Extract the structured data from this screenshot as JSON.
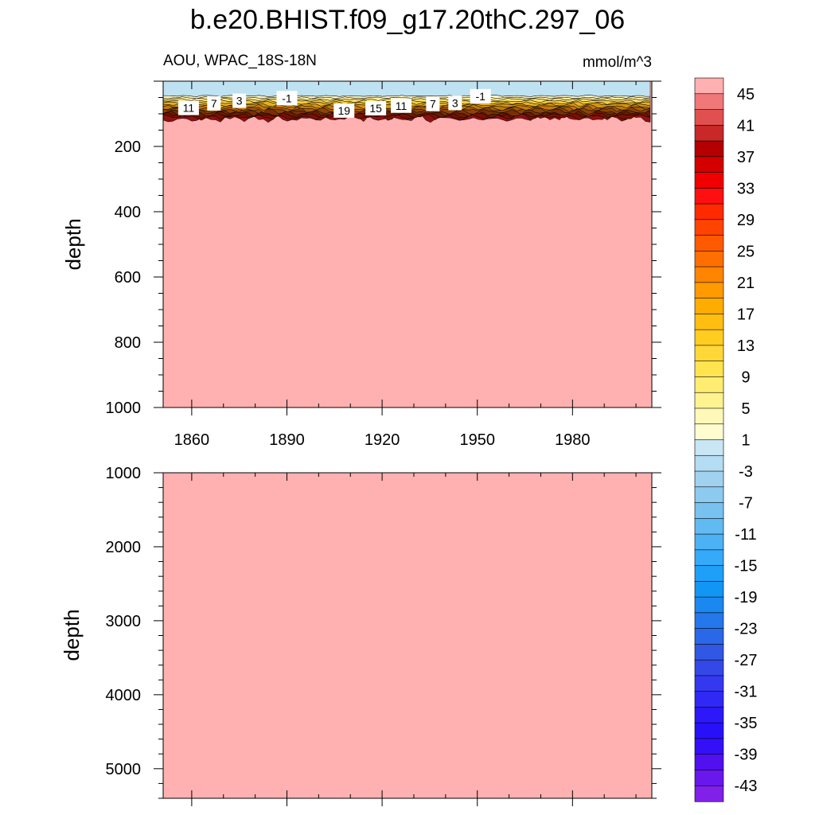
{
  "figure": {
    "title": "b.e20.BHIST.f09_g17.20thC.297_06"
  },
  "chart_data": [
    {
      "type": "heatmap",
      "panel": "upper",
      "title": "AOU, WPAC_18S-18N",
      "units": "mmol/m^3",
      "xlabel": "",
      "ylabel": "depth",
      "xlim": [
        1851,
        2005
      ],
      "ylim": [
        0,
        1000
      ],
      "y_reversed": true,
      "xticks": [
        "1860",
        "1890",
        "1920",
        "1950",
        "1980"
      ],
      "yticks": [
        "200",
        "400",
        "600",
        "800",
        "1000"
      ],
      "grid": false,
      "description_of_field": "negative values near surface (~0-45 m), sharp increase through thermocline (~45-120 m), values above 45 below ~120 m",
      "contour_labels": [
        {
          "text": "11",
          "x": 1859,
          "y": 82
        },
        {
          "text": "7",
          "x": 1867,
          "y": 68
        },
        {
          "text": "3",
          "x": 1875,
          "y": 60
        },
        {
          "text": "-1",
          "x": 1890,
          "y": 52
        },
        {
          "text": "19",
          "x": 1908,
          "y": 90
        },
        {
          "text": "15",
          "x": 1918,
          "y": 83
        },
        {
          "text": "11",
          "x": 1926,
          "y": 75
        },
        {
          "text": "7",
          "x": 1936,
          "y": 70
        },
        {
          "text": "3",
          "x": 1943,
          "y": 67
        },
        {
          "text": "-1",
          "x": 1951,
          "y": 46
        }
      ]
    },
    {
      "type": "heatmap",
      "panel": "lower",
      "xlabel": "",
      "ylabel": "depth",
      "xlim": [
        1851,
        2005
      ],
      "ylim": [
        1000,
        5400
      ],
      "y_reversed": true,
      "yticks": [
        "1000",
        "2000",
        "3000",
        "4000",
        "5000"
      ],
      "grid": false,
      "description_of_field": "uniform values above 45 throughout"
    }
  ],
  "colorbar": {
    "levels": [
      "45",
      "41",
      "37",
      "33",
      "29",
      "25",
      "21",
      "17",
      "13",
      "9",
      "5",
      "1",
      "-3",
      "-7",
      "-11",
      "-15",
      "-19",
      "-23",
      "-27",
      "-31",
      "-35",
      "-39",
      "-43"
    ],
    "colors": [
      "#ffb0b0",
      "#f07878",
      "#e05050",
      "#c82828",
      "#b40000",
      "#d40000",
      "#f00000",
      "#ff1010",
      "#ff2a00",
      "#ff4400",
      "#ff5a00",
      "#ff6e00",
      "#ff8400",
      "#ff9a00",
      "#ffac00",
      "#ffbe10",
      "#ffcc20",
      "#ffd838",
      "#ffe450",
      "#ffec70",
      "#fff290",
      "#fff8b8",
      "#fffcd0",
      "#c8e6f4",
      "#b4dcf2",
      "#a0d2f0",
      "#8ccaf0",
      "#78c2f0",
      "#62baf2",
      "#4cb2f4",
      "#34aaf8",
      "#1ea0f8",
      "#1296f4",
      "#1a88f0",
      "#2478ec",
      "#2a68e8",
      "#3058e4",
      "#3448e8",
      "#3438f0",
      "#3028f4",
      "#2c18f8",
      "#2810f8",
      "#3410f8",
      "#5010f0",
      "#6818ec",
      "#8020e8"
    ]
  }
}
